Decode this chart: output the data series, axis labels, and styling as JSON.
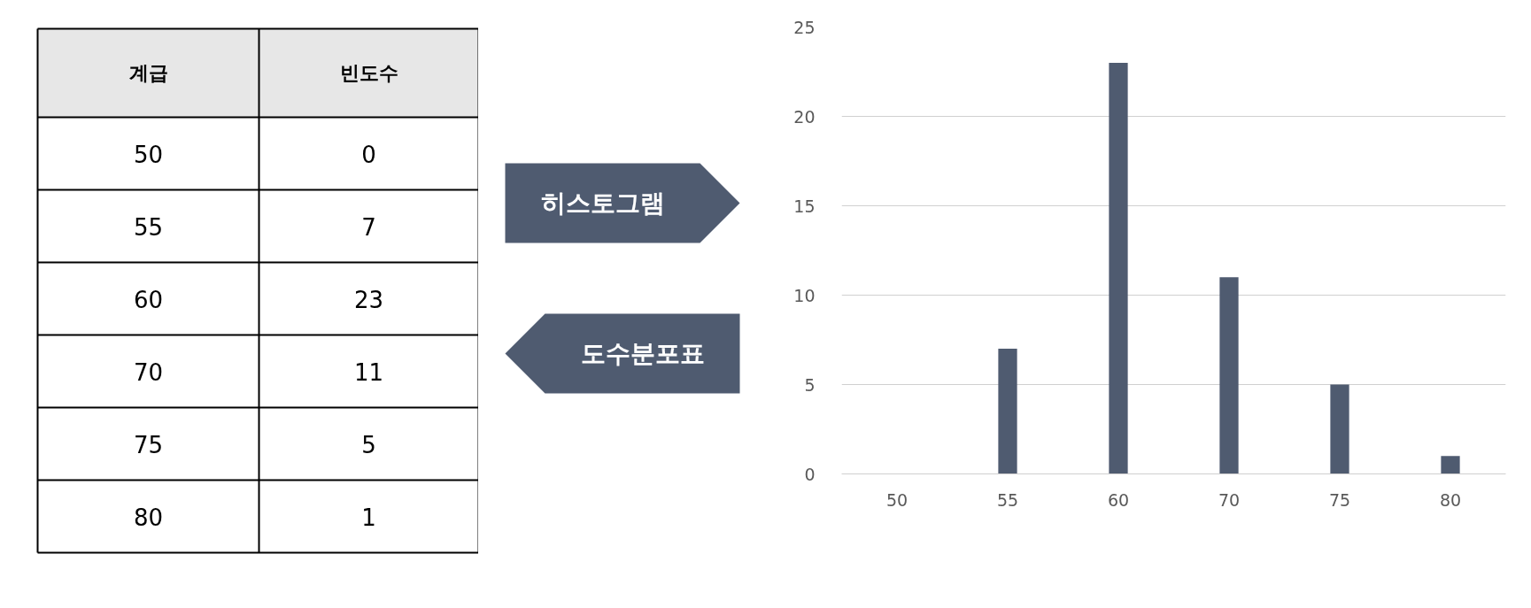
{
  "chart_data": [
    {
      "type": "other",
      "annotations": [
        "계급",
        "빈도수",
        "50",
        "0",
        "55",
        "7",
        "60",
        "23",
        "70",
        "11",
        "75",
        "5",
        "80",
        "1"
      ]
    },
    {
      "type": "other",
      "annotations": [
        "히스토그램",
        "도수분포표"
      ]
    },
    {
      "type": "bar",
      "categories": [
        "50",
        "55",
        "60",
        "70",
        "75",
        "80"
      ],
      "values": [
        0,
        7,
        23,
        11,
        5,
        1
      ],
      "color": "#4f5b70",
      "ylim": [
        0,
        25
      ],
      "yticks": [
        0,
        5,
        10,
        15,
        20,
        25
      ],
      "grid": "y"
    }
  ]
}
